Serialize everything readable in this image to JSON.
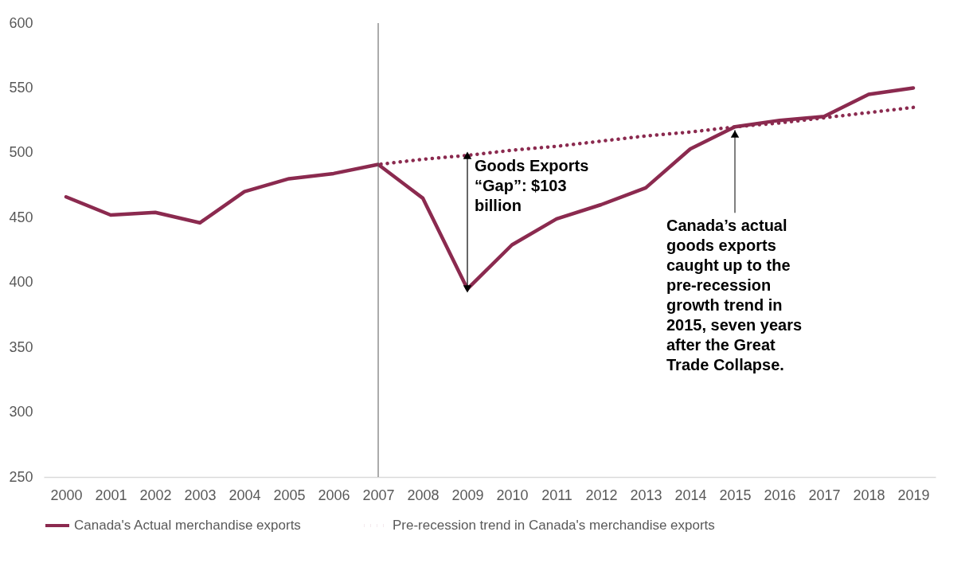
{
  "chart_data": {
    "type": "line",
    "categories": [
      "2000",
      "2001",
      "2002",
      "2003",
      "2004",
      "2005",
      "2006",
      "2007",
      "2008",
      "2009",
      "2010",
      "2011",
      "2012",
      "2013",
      "2014",
      "2015",
      "2016",
      "2017",
      "2018",
      "2019"
    ],
    "series": [
      {
        "name": "Canada's Actual merchandise exports",
        "color": "#8b2a4f",
        "line_style": "solid",
        "values": [
          466,
          452,
          454,
          446,
          470,
          480,
          484,
          491,
          465,
          395,
          429,
          449,
          460,
          473,
          503,
          520,
          525,
          528,
          545,
          550
        ]
      },
      {
        "name": "Pre-recession trend in Canada's merchandise exports",
        "color": "#8b2a4f",
        "line_style": "dotted",
        "type": "line",
        "values": [
          null,
          null,
          null,
          null,
          null,
          null,
          null,
          491,
          495,
          498,
          502,
          505,
          509,
          513,
          516,
          520,
          523,
          527,
          531,
          535
        ]
      }
    ],
    "ylim": [
      250,
      600
    ],
    "yticks": [
      250,
      300,
      350,
      400,
      450,
      500,
      550,
      600
    ],
    "grid": false,
    "legend": "bottom",
    "ref_lines": [
      {
        "axis": "x",
        "value": "2007",
        "color": "#595959"
      }
    ],
    "annotations": [
      {
        "text": "Goods Exports “Gap”: $103 billion",
        "x": "2009",
        "y": 498
      },
      {
        "text": "Canada’s actual goods exports caught up to the pre-recession growth trend in 2015, seven years after the Great Trade Collapse.",
        "x": "2015",
        "y": 520
      }
    ]
  }
}
